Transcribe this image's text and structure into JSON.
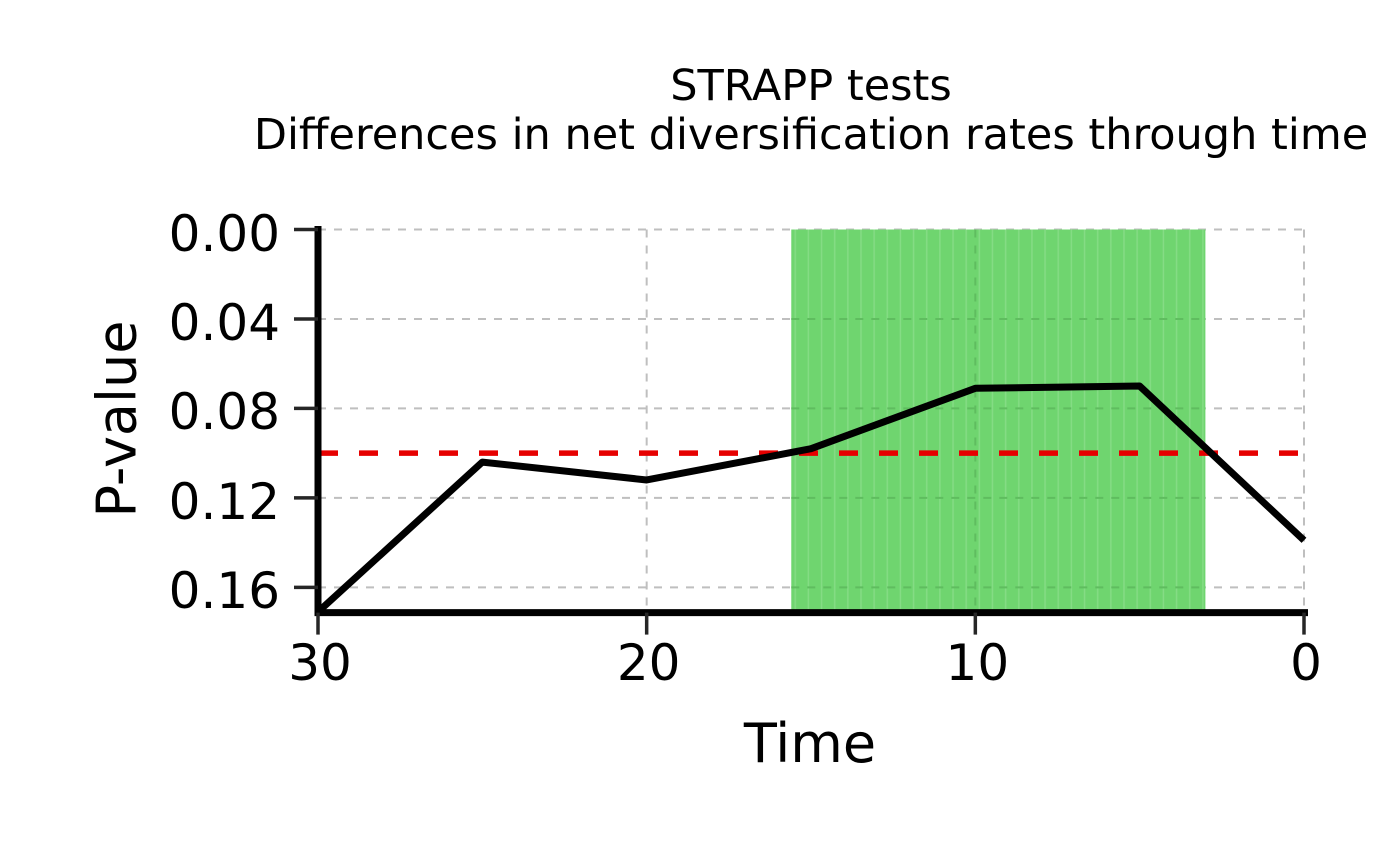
{
  "chart_data": {
    "type": "line",
    "title": "STRAPP tests",
    "subtitle": "Differences in net diversification rates through time",
    "xlabel": "Time",
    "ylabel": "P-value",
    "x": [
      30,
      25,
      20,
      15,
      10,
      5,
      0
    ],
    "series": [
      {
        "name": "p-value",
        "values": [
          0.171,
          0.104,
          0.112,
          0.098,
          0.071,
          0.07,
          0.139
        ]
      }
    ],
    "threshold": 0.1,
    "significant_region": {
      "x_from": 15.6,
      "x_to": 3.0
    },
    "x_ticks": [
      30,
      20,
      10,
      0
    ],
    "y_ticks": [
      "0.00",
      "0.04",
      "0.08",
      "0.12",
      "0.16"
    ],
    "xlim": [
      30,
      0
    ],
    "ylim": [
      0.1713,
      0
    ],
    "x_axis_reversed": true,
    "y_axis_reversed": true,
    "grid": "dashed",
    "colors": {
      "line": "#000000",
      "threshold": "#e60000",
      "region": "#6fd56f",
      "region_stripe": "#85dc85",
      "grid": "#bfbfbf",
      "grid_on_region": "#5fbd5f",
      "axis": "#000000",
      "tick": "#262626"
    }
  }
}
